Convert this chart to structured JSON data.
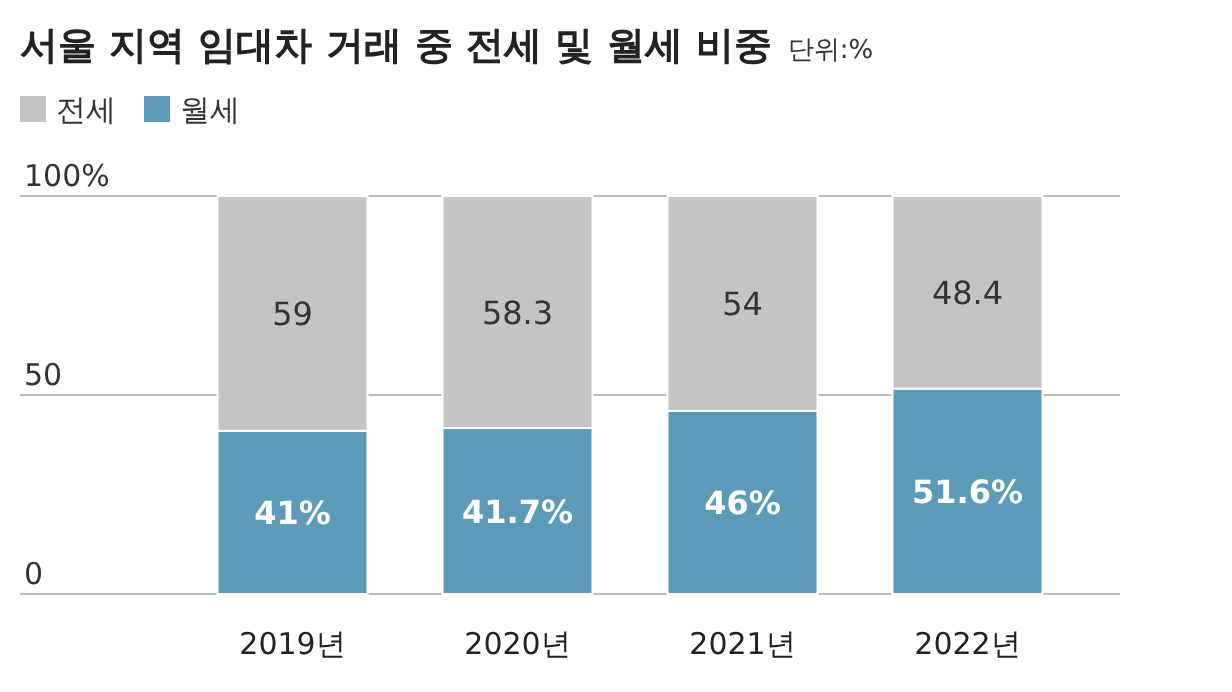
{
  "chart_data": {
    "type": "bar",
    "title": "서울 지역 임대차 거래 중 전세 및 월세 비중",
    "subtitle": "단위:%",
    "categories": [
      "2019년",
      "2020년",
      "2021년",
      "2022년"
    ],
    "stacked": true,
    "series": [
      {
        "name": "월세",
        "color": "#5b9bb8",
        "values": [
          41,
          41.7,
          46,
          51.6
        ],
        "value_labels": [
          "41%",
          "41.7%",
          "46%",
          "51.6%"
        ]
      },
      {
        "name": "전세",
        "color": "#c4c4c4",
        "values": [
          59,
          58.3,
          54,
          48.4
        ],
        "value_labels": [
          "59",
          "58.3",
          "54",
          "48.4"
        ]
      }
    ],
    "ylim": [
      0,
      100
    ],
    "yticks": [
      0,
      50,
      {
        "value": 100,
        "label": "100%"
      }
    ],
    "grid": "y",
    "legend": "top left"
  }
}
